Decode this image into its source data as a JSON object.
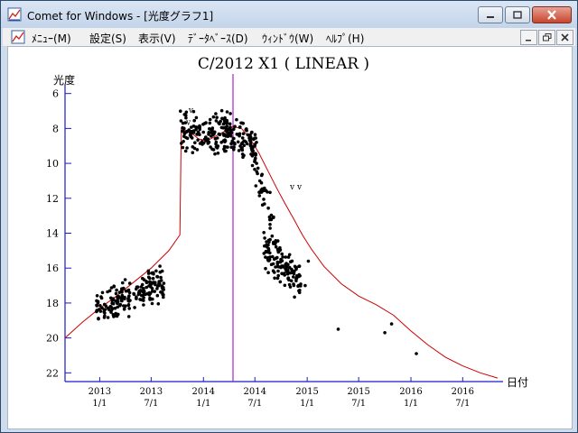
{
  "window": {
    "title": "Comet for Windows - [光度グラフ1]"
  },
  "menu": {
    "items": [
      "ﾒﾆｭｰ(M)",
      "設定(S)",
      "表示(V)",
      "ﾃﾞｰﾀﾍﾞｰｽ(D)",
      "ｳｨﾝﾄﾞｳ(W)",
      "ﾍﾙﾌﾟ(H)"
    ]
  },
  "icons": {
    "app": "chart-app-icon",
    "minimize": "minimize-icon",
    "maximize": "maximize-icon",
    "close": "close-icon",
    "mdi_minimize": "mdi-minimize-icon",
    "mdi_restore": "mdi-restore-icon",
    "mdi_close": "mdi-close-icon"
  },
  "colors": {
    "axis": "#1a1acc",
    "points": "#000000",
    "model_curve": "#cc0000",
    "marker_line": "#aa22cc"
  },
  "chart_data": {
    "type": "scatter",
    "title": "C/2012 X1 ( LINEAR )",
    "ylabel": "光度",
    "xlabel": "日付",
    "y_inverted": true,
    "ylim": [
      22.5,
      5.5
    ],
    "y_ticks": [
      6,
      8,
      10,
      12,
      14,
      16,
      18,
      20,
      22
    ],
    "xlim": [
      "2012-09-01",
      "2016-11-20"
    ],
    "x_ticks": [
      {
        "date": "2013-01-01",
        "label": [
          "2013",
          "1/1"
        ]
      },
      {
        "date": "2013-07-01",
        "label": [
          "2013",
          "7/1"
        ]
      },
      {
        "date": "2014-01-01",
        "label": [
          "2014",
          "1/1"
        ]
      },
      {
        "date": "2014-07-01",
        "label": [
          "2014",
          "7/1"
        ]
      },
      {
        "date": "2015-01-01",
        "label": [
          "2015",
          "1/1"
        ]
      },
      {
        "date": "2015-07-01",
        "label": [
          "2015",
          "7/1"
        ]
      },
      {
        "date": "2016-01-01",
        "label": [
          "2016",
          "1/1"
        ]
      },
      {
        "date": "2016-07-01",
        "label": [
          "2016",
          "7/1"
        ]
      }
    ],
    "marker_date": "2014-04-15",
    "annotations": [
      {
        "text": "v",
        "date": "2013-11-10",
        "mag": 7.1
      },
      {
        "text": "v",
        "date": "2013-11-01",
        "mag": 7.8
      },
      {
        "text": "v v",
        "date": "2014-11-01",
        "mag": 11.5
      }
    ],
    "series": [
      {
        "kind": "model_curve",
        "points": [
          [
            "2012-09-01",
            20.0
          ],
          [
            "2012-11-01",
            19.1
          ],
          [
            "2013-01-01",
            18.3
          ],
          [
            "2013-03-01",
            17.6
          ],
          [
            "2013-05-01",
            16.8
          ],
          [
            "2013-07-01",
            16.0
          ],
          [
            "2013-09-01",
            15.0
          ],
          [
            "2013-10-10",
            14.1
          ],
          [
            "2013-10-15",
            8.0
          ],
          [
            "2013-11-15",
            8.2
          ],
          [
            "2013-12-15",
            8.6
          ],
          [
            "2014-01-15",
            8.7
          ],
          [
            "2014-03-01",
            8.3
          ],
          [
            "2014-04-15",
            7.9
          ],
          [
            "2014-05-15",
            8.0
          ],
          [
            "2014-06-15",
            8.6
          ],
          [
            "2014-07-15",
            9.4
          ],
          [
            "2014-08-15",
            10.4
          ],
          [
            "2014-09-15",
            11.4
          ],
          [
            "2014-10-15",
            12.3
          ],
          [
            "2014-11-15",
            13.2
          ],
          [
            "2014-12-15",
            14.1
          ],
          [
            "2015-01-15",
            14.9
          ],
          [
            "2015-03-01",
            15.9
          ],
          [
            "2015-05-01",
            16.9
          ],
          [
            "2015-07-01",
            17.6
          ],
          [
            "2015-09-01",
            18.1
          ],
          [
            "2015-11-01",
            18.7
          ],
          [
            "2016-01-01",
            19.6
          ],
          [
            "2016-03-01",
            20.4
          ],
          [
            "2016-05-01",
            21.1
          ],
          [
            "2016-07-01",
            21.6
          ],
          [
            "2016-09-01",
            22.0
          ],
          [
            "2016-11-01",
            22.3
          ]
        ]
      },
      {
        "kind": "observations",
        "clusters": [
          {
            "from": "2012-12-20",
            "to": "2013-08-15",
            "mag_start": 18.4,
            "mag_end": 16.8,
            "spread": 1.2,
            "count": 200
          },
          {
            "from": "2013-10-12",
            "to": "2014-04-01",
            "mag_start": 8.3,
            "mag_end": 8.3,
            "spread": 1.4,
            "count": 130
          },
          {
            "from": "2014-03-15",
            "to": "2014-07-10",
            "mag_start": 8.0,
            "mag_end": 9.2,
            "spread": 1.2,
            "count": 100
          },
          {
            "from": "2014-06-20",
            "to": "2014-09-20",
            "mag_start": 9.3,
            "mag_end": 14.5,
            "spread": 1.5,
            "count": 45
          },
          {
            "from": "2014-08-01",
            "to": "2014-12-10",
            "mag_start": 15.0,
            "mag_end": 16.8,
            "spread": 1.3,
            "count": 120
          }
        ],
        "points": [
          [
            "2014-12-05",
            17.4
          ],
          [
            "2015-01-05",
            15.6
          ],
          [
            "2014-12-25",
            17.0
          ],
          [
            "2015-04-20",
            19.5
          ],
          [
            "2015-10-01",
            19.7
          ],
          [
            "2015-10-25",
            19.2
          ],
          [
            "2016-01-20",
            20.9
          ]
        ]
      }
    ]
  }
}
